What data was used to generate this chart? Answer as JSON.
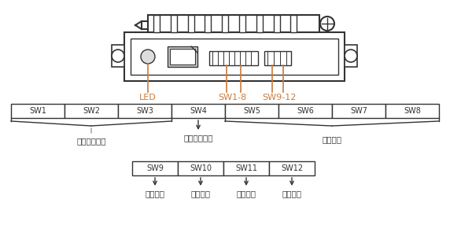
{
  "bg_color": "#ffffff",
  "line_color": "#333333",
  "orange_color": "#CC7A3A",
  "sw1_8_labels": [
    "SW1",
    "SW2",
    "SW3",
    "SW4",
    "SW5",
    "SW6",
    "SW7",
    "SW8"
  ],
  "sw9_12_labels": [
    "SW9",
    "SW10",
    "SW11",
    "SW12"
  ],
  "brace_labels": [
    "运行电流设定",
    "空闲电流设定",
    "细分设定"
  ],
  "sw9_12_bottom_labels": [
    "自测模式",
    "细分插补",
    "控制模式",
    "噪音滤波"
  ],
  "led_label": "LED",
  "sw18_label": "SW1-8",
  "sw912_label": "SW9-12",
  "font_name": "SimHei"
}
